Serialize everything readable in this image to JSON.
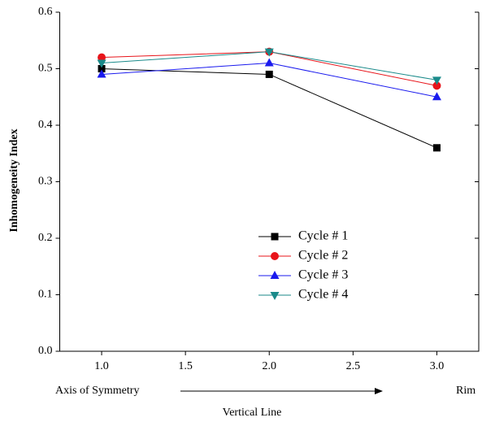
{
  "chart_data": {
    "type": "line",
    "xlabel": "Vertical Line",
    "ylabel": "Inhomogeneity Index",
    "annotations": [
      "Axis of Symmetry",
      "Rim"
    ],
    "x": [
      1,
      2,
      3
    ],
    "series": [
      {
        "name": "Cycle # 1",
        "color": "#000000",
        "marker": "square",
        "values": [
          0.5,
          0.49,
          0.36
        ]
      },
      {
        "name": "Cycle # 2",
        "color": "#e8141a",
        "marker": "circle",
        "values": [
          0.52,
          0.53,
          0.47
        ]
      },
      {
        "name": "Cycle # 3",
        "color": "#1a1aee",
        "marker": "triangle-up",
        "values": [
          0.49,
          0.51,
          0.45
        ]
      },
      {
        "name": "Cycle # 4",
        "color": "#1a8a8a",
        "marker": "triangle-down",
        "values": [
          0.51,
          0.53,
          0.48
        ]
      }
    ],
    "xlim": [
      0.75,
      3.25
    ],
    "xticks": [
      {
        "value": 1,
        "label": "1.0"
      },
      1.5,
      {
        "value": 2,
        "label": "2.0"
      },
      2.5,
      {
        "value": 3,
        "label": "3.0"
      }
    ],
    "ylim": [
      0,
      0.6
    ],
    "yticks": [
      {
        "value": 0,
        "label": "0.0"
      },
      0.1,
      0.2,
      0.3,
      0.4,
      0.5,
      0.6
    ]
  }
}
